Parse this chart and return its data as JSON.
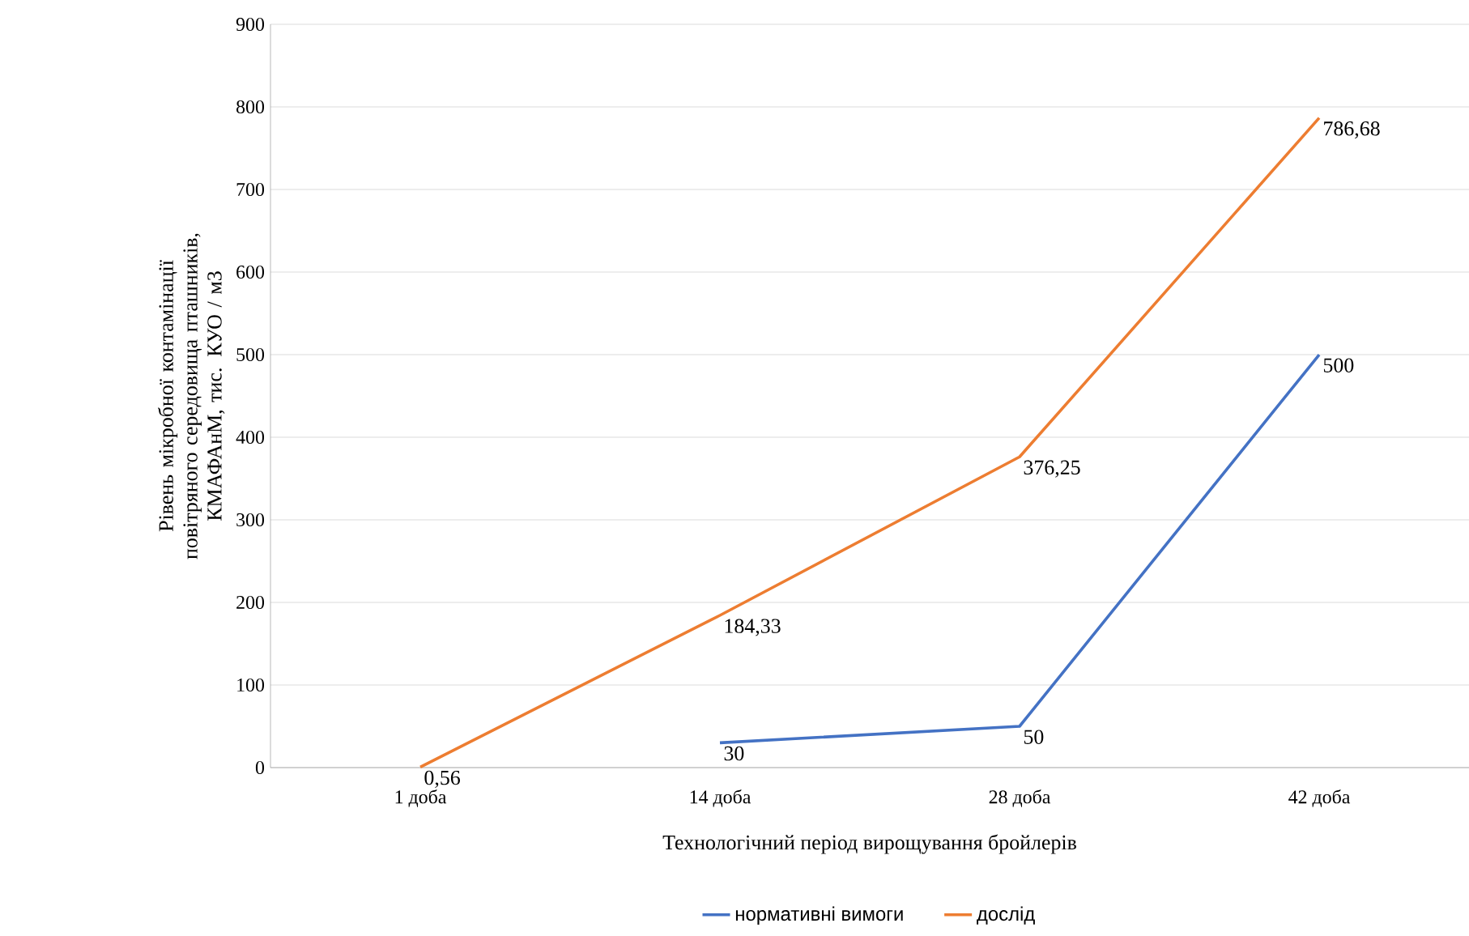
{
  "chart_data": {
    "type": "line",
    "xlabel": "Технологічний період вирощування бройлерів",
    "ylabel": "Рівень мікробної контамінації повітряного середовища пташників, КМАФАнМ, тис. КУО / м3",
    "categories": [
      "1 доба",
      "14 доба",
      "28 доба",
      "42 доба"
    ],
    "series": [
      {
        "name": "нормативні вимоги",
        "color": "#4472c4",
        "values": [
          null,
          30,
          50,
          500
        ],
        "value_labels": [
          null,
          "30",
          "50",
          "500"
        ]
      },
      {
        "name": "дослід",
        "color": "#ed7d31",
        "values": [
          0.56,
          184.33,
          376.25,
          786.68
        ],
        "value_labels": [
          "0,56",
          "184,33",
          "376,25",
          "786,68"
        ]
      }
    ],
    "ylim": [
      0,
      900
    ],
    "yticks": [
      0,
      100,
      200,
      300,
      400,
      500,
      600,
      700,
      800,
      900
    ],
    "grid": "y",
    "legend": "bottom",
    "marker": "none"
  }
}
